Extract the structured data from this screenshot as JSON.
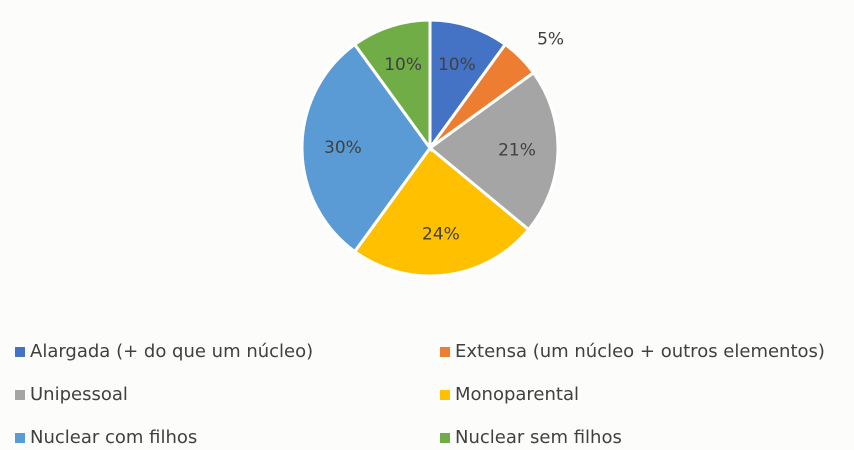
{
  "chart_data": {
    "type": "pie",
    "categories": [
      "Alargada (+ do que um núcleo)",
      "Extensa (um núcleo + outros elementos)",
      "Unipessoal",
      "Monoparental",
      "Nuclear com filhos",
      "Nuclear sem filhos"
    ],
    "values": [
      10,
      5,
      21,
      24,
      30,
      10
    ],
    "value_labels": [
      "10%",
      "5%",
      "21%",
      "24%",
      "30%",
      "10%"
    ],
    "colors": [
      "#4472c4",
      "#ed7d31",
      "#a5a5a5",
      "#ffc000",
      "#5b9bd5",
      "#70ad47"
    ],
    "legend": "bottom"
  }
}
